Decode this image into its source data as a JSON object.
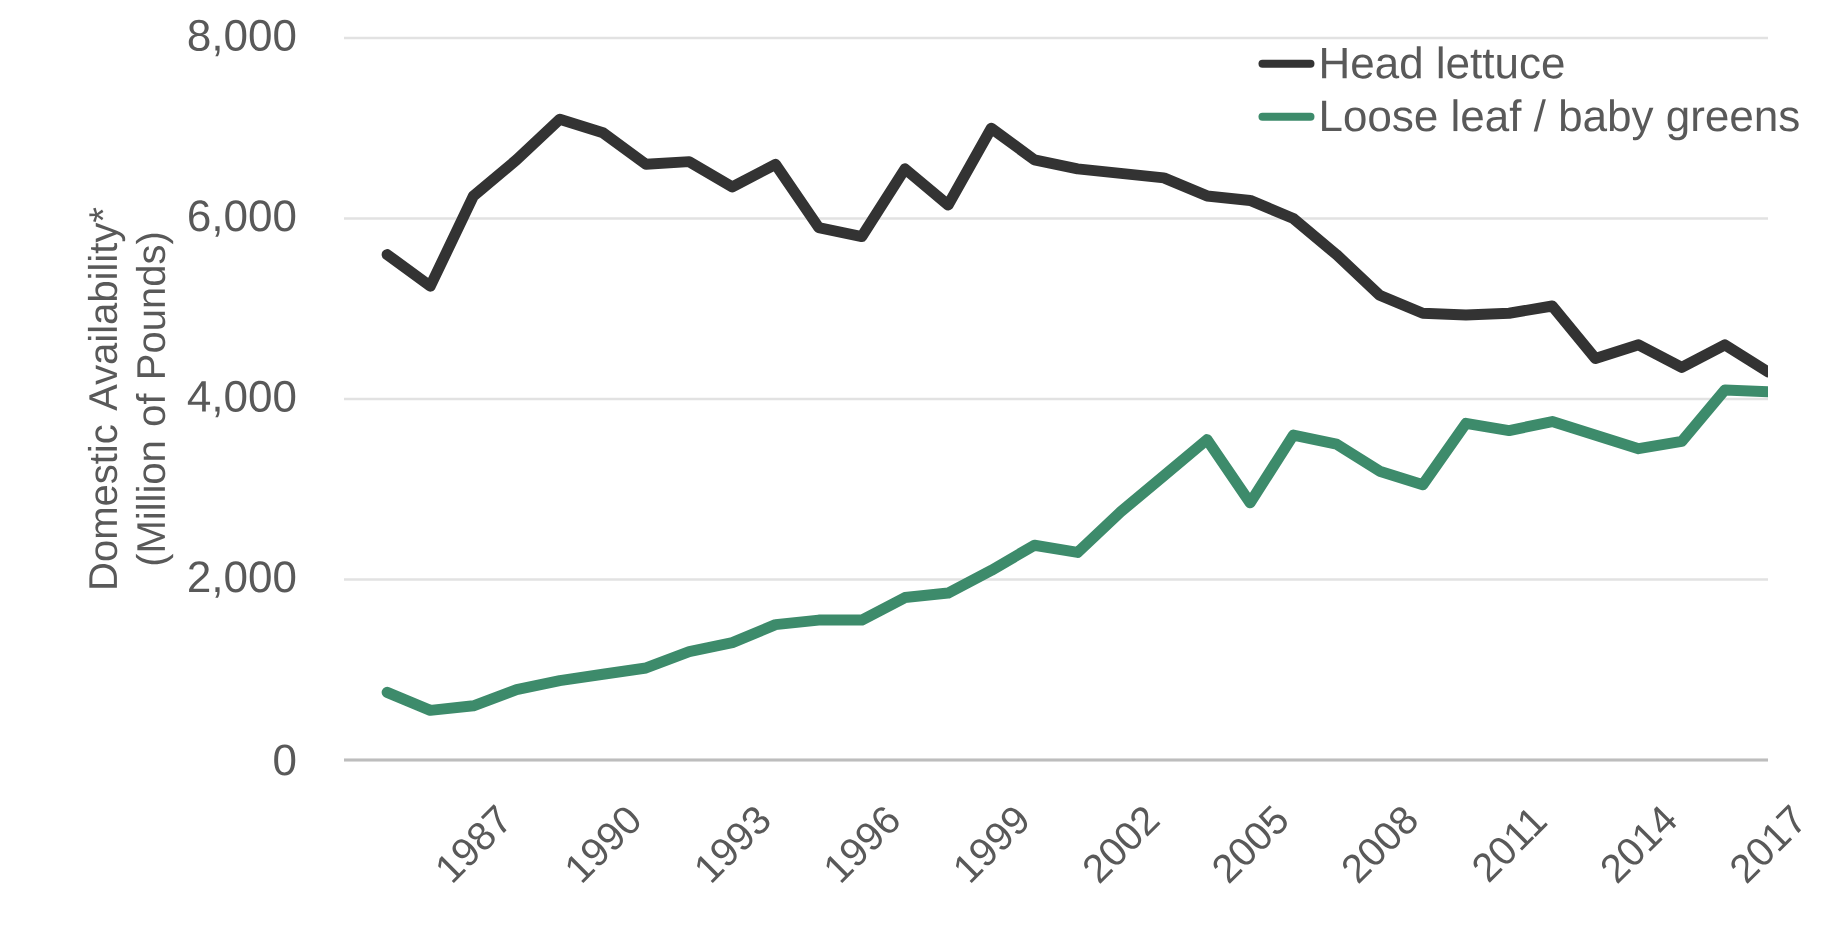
{
  "chart_data": {
    "type": "line",
    "ylabel": "Domestic Availability* (Million of Pounds)",
    "x": [
      1985,
      1986,
      1987,
      1988,
      1989,
      1990,
      1991,
      1992,
      1993,
      1994,
      1995,
      1996,
      1997,
      1998,
      1999,
      2000,
      2001,
      2002,
      2003,
      2004,
      2005,
      2006,
      2007,
      2008,
      2009,
      2010,
      2011,
      2012,
      2013,
      2014,
      2015,
      2016,
      2017
    ],
    "series": [
      {
        "name": "Head lettuce",
        "color": "#333333",
        "values": [
          5600,
          5250,
          6250,
          6650,
          7100,
          6950,
          6600,
          6630,
          6350,
          6600,
          5900,
          5800,
          6550,
          6150,
          7000,
          6650,
          6550,
          6500,
          6450,
          6250,
          6200,
          6000,
          5600,
          5150,
          4950,
          4930,
          4950,
          5030,
          4450,
          4600,
          4350,
          4600,
          4300
        ]
      },
      {
        "name": "Loose leaf / baby greens",
        "color": "#3d8b6b",
        "values": [
          750,
          550,
          600,
          780,
          880,
          950,
          1020,
          1200,
          1300,
          1500,
          1550,
          1550,
          1800,
          1850,
          2100,
          2380,
          2300,
          2750,
          3150,
          3550,
          2850,
          3600,
          3500,
          3200,
          3050,
          3730,
          3650,
          3750,
          3600,
          3450,
          3530,
          4100,
          4080
        ]
      }
    ],
    "xlim": [
      1984,
      2017
    ],
    "xticks": [
      1987,
      1990,
      1993,
      1996,
      1999,
      2002,
      2005,
      2008,
      2011,
      2014,
      2017
    ],
    "ylim": [
      0,
      8000
    ],
    "yticks": [
      0,
      {
        "value": 2000,
        "label": "2,000"
      },
      {
        "value": 4000,
        "label": "4,000"
      },
      {
        "value": 6000,
        "label": "6,000"
      },
      {
        "value": 8000,
        "label": "8,000"
      }
    ],
    "grid": "y",
    "legend": "top right"
  }
}
